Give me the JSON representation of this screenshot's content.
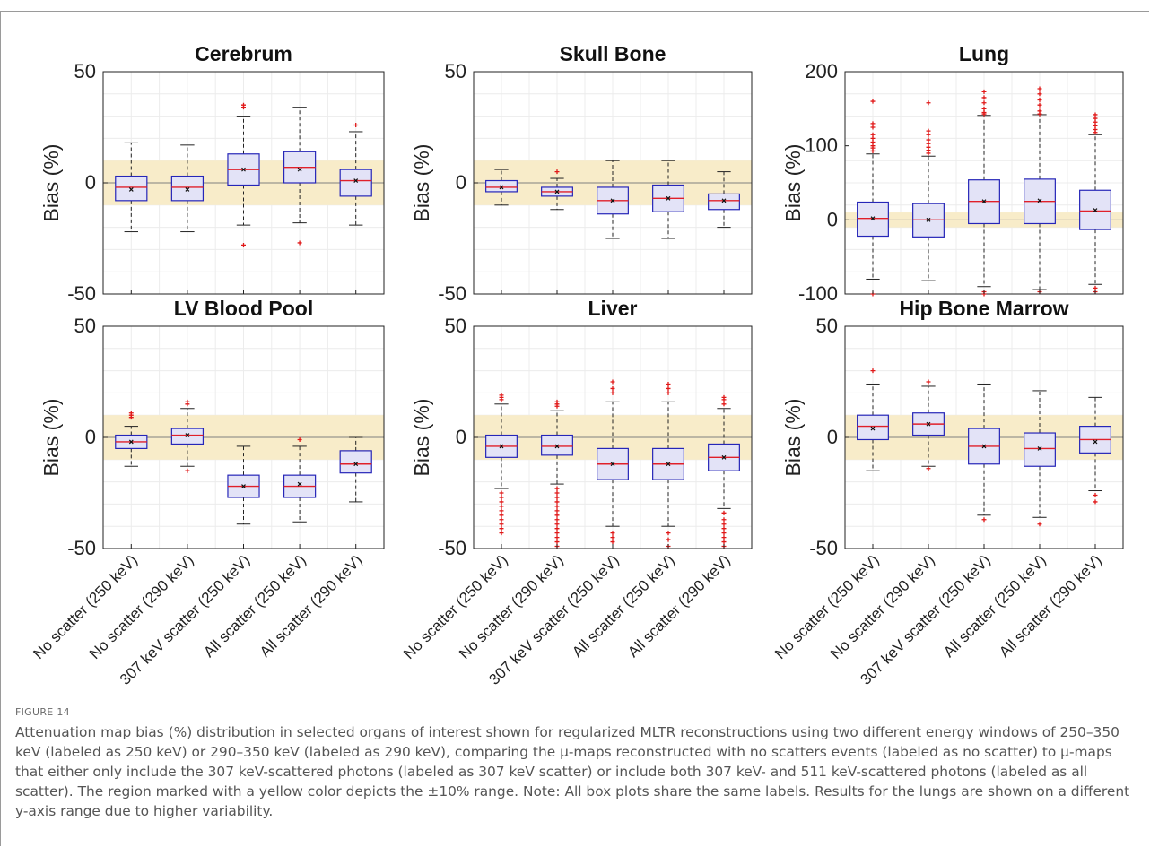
{
  "figure_label": "FIGURE 14",
  "caption": "Attenuation map bias (%) distribution in selected organs of interest shown for regularized MLTR reconstructions using two different energy windows of 250–350 keV (labeled as 250 keV) or 290–350 keV (labeled as 290 keV), comparing the μ-maps reconstructed with no scatters events (labeled as no scatter) to μ-maps that either only include the 307 keV-scattered photons (labeled as 307 keV scatter) or include both 307 keV- and 511 keV-scattered photons (labeled as all scatter). The region marked with a yellow color depicts the ±10% range. Note: All box plots share the same labels. Results for the lungs are shown on a different y-axis range due to higher variability.",
  "colors": {
    "box_fill": "#e3e3f7",
    "box_edge": "#2626b8",
    "median": "#e0202a",
    "outlier": "#e01818",
    "band": "#f8ecc9",
    "zero_line": "#808080",
    "grid": "#ececec"
  },
  "chart_data": [
    {
      "type": "box",
      "title": "Cerebrum",
      "ylabel": "Bias (%)",
      "ylim": [
        -50,
        50
      ],
      "yticks": [
        "50",
        "0",
        "-50"
      ],
      "band": [
        -10,
        10
      ],
      "categories": [
        "No scatter (250 keV)",
        "No scatter (290 keV)",
        "307 keV scatter (250 keV)",
        "All scatter (250 keV)",
        "All scatter (290 keV)"
      ],
      "boxes": [
        {
          "whisker_low": -22,
          "q1": -8,
          "median": -2,
          "q3": 3,
          "whisker_high": 18,
          "mean": -3,
          "outliers": []
        },
        {
          "whisker_low": -22,
          "q1": -8,
          "median": -2,
          "q3": 3,
          "whisker_high": 17,
          "mean": -3,
          "outliers": []
        },
        {
          "whisker_low": -19,
          "q1": -1,
          "median": 6,
          "q3": 13,
          "whisker_high": 30,
          "mean": 6,
          "outliers": [
            34,
            35,
            -28
          ]
        },
        {
          "whisker_low": -18,
          "q1": 0,
          "median": 7,
          "q3": 14,
          "whisker_high": 34,
          "mean": 6,
          "outliers": [
            -27
          ]
        },
        {
          "whisker_low": -19,
          "q1": -6,
          "median": 1,
          "q3": 6,
          "whisker_high": 23,
          "mean": 1,
          "outliers": [
            26
          ]
        }
      ]
    },
    {
      "type": "box",
      "title": "Skull Bone",
      "ylabel": "Bias (%)",
      "ylim": [
        -50,
        50
      ],
      "yticks": [
        "50",
        "0",
        "-50"
      ],
      "band": [
        -10,
        10
      ],
      "categories": [
        "No scatter (250 keV)",
        "No scatter (290 keV)",
        "307 keV scatter (250 keV)",
        "All scatter (250 keV)",
        "All scatter (290 keV)"
      ],
      "boxes": [
        {
          "whisker_low": -10,
          "q1": -4,
          "median": -2,
          "q3": 1,
          "whisker_high": 6,
          "mean": -2,
          "outliers": []
        },
        {
          "whisker_low": -12,
          "q1": -6,
          "median": -4,
          "q3": -2,
          "whisker_high": 2,
          "mean": -4,
          "outliers": [
            5
          ]
        },
        {
          "whisker_low": -25,
          "q1": -14,
          "median": -8,
          "q3": -2,
          "whisker_high": 10,
          "mean": -8,
          "outliers": []
        },
        {
          "whisker_low": -25,
          "q1": -13,
          "median": -7,
          "q3": -1,
          "whisker_high": 10,
          "mean": -7,
          "outliers": []
        },
        {
          "whisker_low": -20,
          "q1": -12,
          "median": -8,
          "q3": -5,
          "whisker_high": 5,
          "mean": -8,
          "outliers": []
        }
      ]
    },
    {
      "type": "box",
      "title": "Lung",
      "ylabel": "Bias (%)",
      "ylim": [
        -100,
        200
      ],
      "yticks": [
        "200",
        "100",
        "0",
        "-100"
      ],
      "band": [
        -10,
        10
      ],
      "categories": [
        "No scatter (250 keV)",
        "No scatter (290 keV)",
        "307 keV scatter (250 keV)",
        "All scatter (250 keV)",
        "All scatter (290 keV)"
      ],
      "boxes": [
        {
          "whisker_low": -80,
          "q1": -22,
          "median": 2,
          "q3": 24,
          "whisker_high": 89,
          "mean": 2,
          "outliers": [
            160,
            130,
            125,
            115,
            110,
            105,
            100,
            97,
            93,
            -100
          ]
        },
        {
          "whisker_low": -82,
          "q1": -23,
          "median": 0,
          "q3": 22,
          "whisker_high": 86,
          "mean": 0,
          "outliers": [
            158,
            120,
            115,
            108,
            103,
            98,
            94,
            90
          ]
        },
        {
          "whisker_low": -90,
          "q1": -5,
          "median": 25,
          "q3": 54,
          "whisker_high": 141,
          "mean": 25,
          "outliers": [
            173,
            165,
            158,
            150,
            145,
            143,
            -97,
            -100
          ]
        },
        {
          "whisker_low": -94,
          "q1": -5,
          "median": 25,
          "q3": 55,
          "whisker_high": 142,
          "mean": 26,
          "outliers": [
            177,
            170,
            162,
            155,
            147,
            143,
            -97
          ]
        },
        {
          "whisker_low": -87,
          "q1": -13,
          "median": 12,
          "q3": 40,
          "whisker_high": 115,
          "mean": 13,
          "outliers": [
            142,
            137,
            132,
            127,
            122,
            118,
            -92,
            -97
          ]
        }
      ]
    },
    {
      "type": "box",
      "title": "LV Blood Pool",
      "ylabel": "Bias (%)",
      "ylim": [
        -50,
        50
      ],
      "yticks": [
        "50",
        "0",
        "-50"
      ],
      "band": [
        -10,
        10
      ],
      "categories": [
        "No scatter (250 keV)",
        "No scatter (290 keV)",
        "307 keV scatter (250 keV)",
        "All scatter (250 keV)",
        "All scatter (290 keV)"
      ],
      "boxes": [
        {
          "whisker_low": -13,
          "q1": -5,
          "median": -2,
          "q3": 1,
          "whisker_high": 5,
          "mean": -2,
          "outliers": [
            9,
            10,
            11
          ]
        },
        {
          "whisker_low": -13,
          "q1": -3,
          "median": 1,
          "q3": 4,
          "whisker_high": 13,
          "mean": 1,
          "outliers": [
            15,
            16,
            -15
          ]
        },
        {
          "whisker_low": -39,
          "q1": -27,
          "median": -22,
          "q3": -17,
          "whisker_high": -4,
          "mean": -22,
          "outliers": []
        },
        {
          "whisker_low": -38,
          "q1": -27,
          "median": -22,
          "q3": -17,
          "whisker_high": -4,
          "mean": -21,
          "outliers": [
            -1
          ]
        },
        {
          "whisker_low": -29,
          "q1": -16,
          "median": -12,
          "q3": -6,
          "whisker_high": 0,
          "mean": -12,
          "outliers": []
        }
      ]
    },
    {
      "type": "box",
      "title": "Liver",
      "ylabel": "Bias (%)",
      "ylim": [
        -50,
        50
      ],
      "yticks": [
        "50",
        "0",
        "-50"
      ],
      "band": [
        -10,
        10
      ],
      "categories": [
        "No scatter (250 keV)",
        "No scatter (290 keV)",
        "307 keV scatter (250 keV)",
        "All scatter (250 keV)",
        "All scatter (290 keV)"
      ],
      "boxes": [
        {
          "whisker_low": -23,
          "q1": -9,
          "median": -4,
          "q3": 1,
          "whisker_high": 15,
          "mean": -4,
          "outliers": [
            17,
            18,
            19,
            -25,
            -27,
            -29,
            -31,
            -33,
            -35,
            -37,
            -39,
            -41,
            -43
          ]
        },
        {
          "whisker_low": -21,
          "q1": -8,
          "median": -4,
          "q3": 1,
          "whisker_high": 12,
          "mean": -4,
          "outliers": [
            14,
            15,
            16,
            -23,
            -25,
            -27,
            -29,
            -31,
            -33,
            -35,
            -37,
            -39,
            -41,
            -43,
            -45,
            -47,
            -49
          ]
        },
        {
          "whisker_low": -40,
          "q1": -19,
          "median": -12,
          "q3": -5,
          "whisker_high": 16,
          "mean": -12,
          "outliers": [
            20,
            22,
            25,
            -43,
            -45,
            -47
          ]
        },
        {
          "whisker_low": -40,
          "q1": -19,
          "median": -12,
          "q3": -5,
          "whisker_high": 16,
          "mean": -12,
          "outliers": [
            20,
            22,
            24,
            -43,
            -46,
            -49
          ]
        },
        {
          "whisker_low": -32,
          "q1": -15,
          "median": -9,
          "q3": -3,
          "whisker_high": 13,
          "mean": -9,
          "outliers": [
            15,
            17,
            18,
            -34,
            -37,
            -39,
            -41,
            -43,
            -45,
            -47,
            -49
          ]
        }
      ]
    },
    {
      "type": "box",
      "title": "Hip Bone Marrow",
      "ylabel": "Bias (%)",
      "ylim": [
        -50,
        50
      ],
      "yticks": [
        "50",
        "0",
        "-50"
      ],
      "band": [
        -10,
        10
      ],
      "categories": [
        "No scatter (250 keV)",
        "No scatter (290 keV)",
        "307 keV scatter (250 keV)",
        "All scatter (250 keV)",
        "All scatter (290 keV)"
      ],
      "boxes": [
        {
          "whisker_low": -15,
          "q1": -1,
          "median": 5,
          "q3": 10,
          "whisker_high": 24,
          "mean": 4,
          "outliers": [
            30
          ]
        },
        {
          "whisker_low": -13,
          "q1": 1,
          "median": 6,
          "q3": 11,
          "whisker_high": 23,
          "mean": 6,
          "outliers": [
            25,
            -14
          ]
        },
        {
          "whisker_low": -35,
          "q1": -12,
          "median": -4,
          "q3": 4,
          "whisker_high": 24,
          "mean": -4,
          "outliers": [
            -37
          ]
        },
        {
          "whisker_low": -36,
          "q1": -13,
          "median": -5,
          "q3": 2,
          "whisker_high": 21,
          "mean": -5,
          "outliers": [
            -39
          ]
        },
        {
          "whisker_low": -24,
          "q1": -7,
          "median": -1,
          "q3": 5,
          "whisker_high": 18,
          "mean": -2,
          "outliers": [
            -26,
            -29
          ]
        }
      ]
    }
  ]
}
